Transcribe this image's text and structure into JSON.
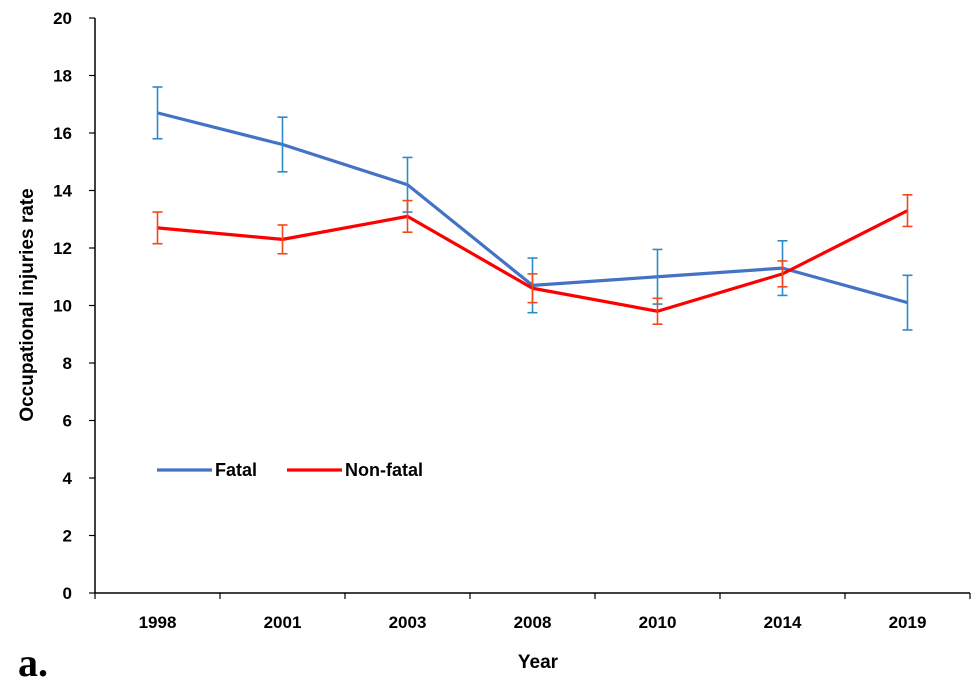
{
  "panel_label": "a.",
  "chart_data": {
    "type": "line",
    "xlabel": "Year",
    "ylabel": "Occupational injuries rate",
    "ylim": [
      0,
      20
    ],
    "yticks": [
      "0",
      "2",
      "4",
      "6",
      "8",
      "10",
      "12",
      "14",
      "16",
      "18",
      "20"
    ],
    "categories": [
      "1998",
      "2001",
      "2003",
      "2008",
      "2010",
      "2014",
      "2019"
    ],
    "legend_position": "middle-left",
    "grid": false,
    "series": [
      {
        "name": "Fatal",
        "color": "#4472C4",
        "errorbar_color": "#2E8BC9",
        "values": [
          16.7,
          15.6,
          14.2,
          10.7,
          11.0,
          11.3,
          10.1
        ],
        "error": [
          0.9,
          0.95,
          0.95,
          0.95,
          0.95,
          0.95,
          0.95
        ]
      },
      {
        "name": "Non-fatal",
        "color": "#FF0000",
        "errorbar_color": "#F04A1C",
        "values": [
          12.7,
          12.3,
          13.1,
          10.6,
          9.8,
          11.1,
          13.3
        ],
        "error": [
          0.55,
          0.5,
          0.55,
          0.5,
          0.45,
          0.45,
          0.55
        ]
      }
    ]
  }
}
